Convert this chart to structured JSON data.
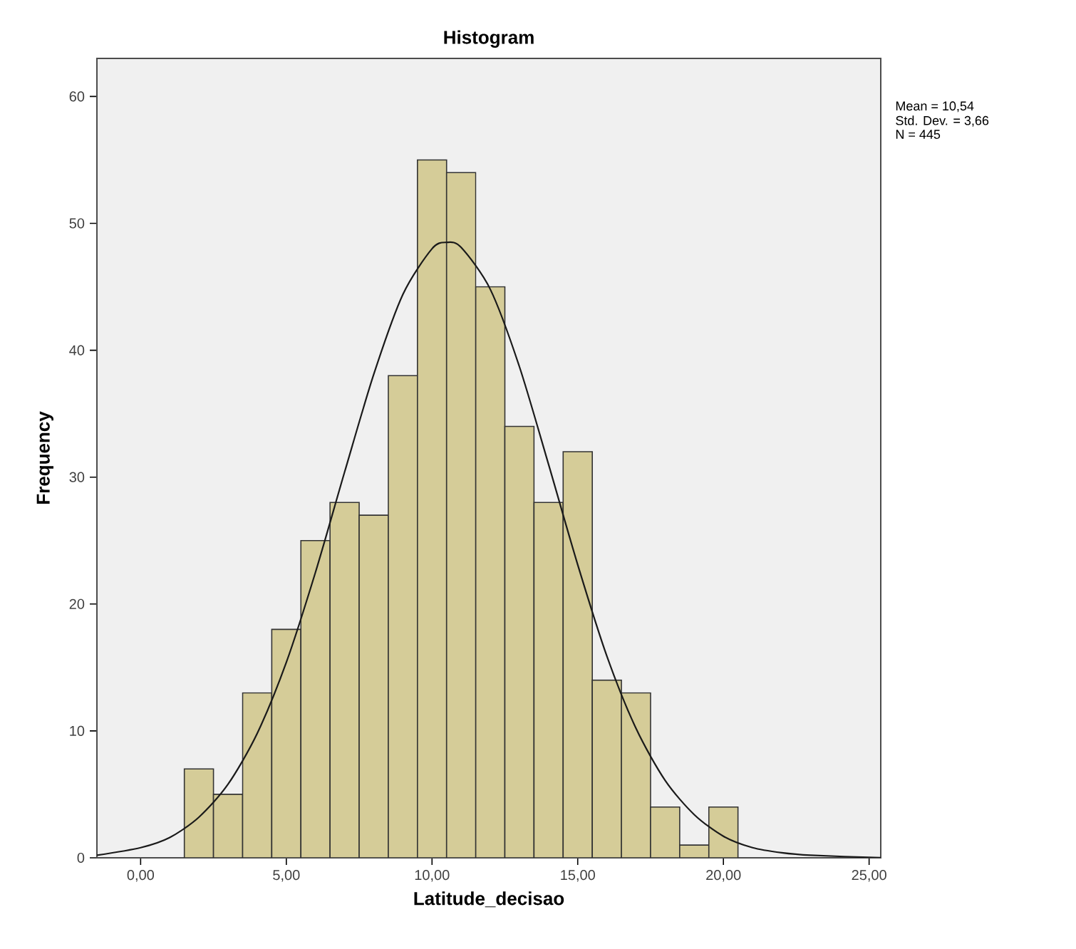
{
  "chart_data": {
    "type": "histogram",
    "title": "Histogram",
    "xlabel": "Latitude_decisao",
    "ylabel": "Frequency",
    "annotations": [
      "Mean = 10,54",
      "Std. Dev. = 3,66",
      "N = 445"
    ],
    "xlim": [
      -1.5,
      25.4
    ],
    "ylim": [
      0,
      63
    ],
    "xticks": [
      {
        "value": 0,
        "label": "0,00"
      },
      {
        "value": 5,
        "label": "5,00"
      },
      {
        "value": 10,
        "label": "10,00"
      },
      {
        "value": 15,
        "label": "15,00"
      },
      {
        "value": 20,
        "label": "20,00"
      },
      {
        "value": 25,
        "label": "25,00"
      }
    ],
    "yticks": [
      0,
      10,
      20,
      30,
      40,
      50,
      60
    ],
    "grid": false,
    "series": [
      {
        "color": "#d5cc98",
        "bins": [
          1.5,
          2.5,
          3.5,
          4.5,
          5.5,
          6.5,
          7.5,
          8.5,
          9.5,
          10.5,
          11.5,
          12.5,
          13.5,
          14.5,
          15.5,
          16.5,
          17.5,
          18.5,
          19.5,
          20.5
        ],
        "values": [
          7,
          5,
          13,
          18,
          25,
          28,
          27,
          38,
          55,
          54,
          45,
          34,
          28,
          32,
          14,
          13,
          4,
          1,
          4
        ]
      },
      {
        "type": "line",
        "color": "#1a1a1a",
        "x": [
          -1.5,
          0,
          1,
          2,
          3,
          4,
          5,
          6,
          7,
          8,
          9,
          10,
          10.5,
          11,
          12,
          13,
          14,
          15,
          16,
          17,
          18,
          19,
          20,
          21,
          22,
          23,
          25.4
        ],
        "values": [
          0.2,
          0.8,
          1.6,
          3.2,
          5.8,
          9.8,
          15.4,
          22.5,
          30.4,
          38.1,
          44.4,
          48.0,
          48.5,
          48.1,
          44.8,
          38.7,
          31.0,
          23.1,
          15.9,
          10.2,
          6.1,
          3.4,
          1.7,
          0.8,
          0.4,
          0.2,
          0.0
        ]
      }
    ]
  }
}
